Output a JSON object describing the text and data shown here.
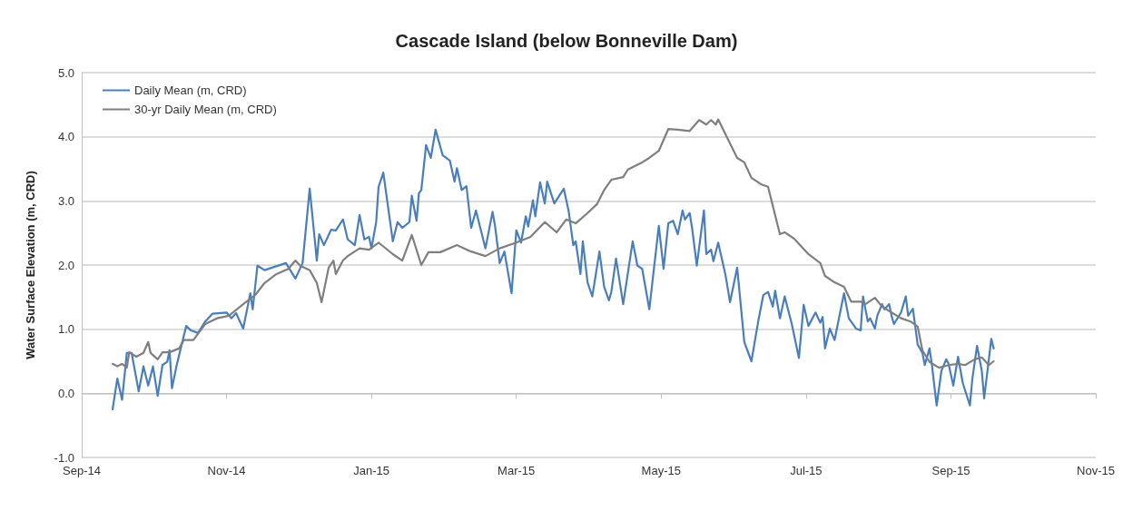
{
  "chart_data": {
    "type": "line",
    "title": "Cascade Island (below Bonneville Dam)",
    "ylabel": "Water Surface Elevation (m, CRD)",
    "xlim": [
      "2014-09-01",
      "2015-11-02"
    ],
    "xticks": [
      {
        "value": "2014-09-01",
        "label": "Sep-14"
      },
      {
        "value": "2014-11-01",
        "label": "Nov-14"
      },
      {
        "value": "2015-01-01",
        "label": "Jan-15"
      },
      {
        "value": "2015-03-03",
        "label": "Mar-15"
      },
      {
        "value": "2015-05-03",
        "label": "May-15"
      },
      {
        "value": "2015-07-03",
        "label": "Jul-15"
      },
      {
        "value": "2015-09-02",
        "label": "Sep-15"
      },
      {
        "value": "2015-11-02",
        "label": "Nov-15"
      }
    ],
    "ylim": [
      -1,
      5
    ],
    "yticks": [
      {
        "value": -1,
        "label": "-1.0"
      },
      {
        "value": 0,
        "label": "0.0"
      },
      {
        "value": 1,
        "label": "1.0"
      },
      {
        "value": 2,
        "label": "2.0"
      },
      {
        "value": 3,
        "label": "3.0"
      },
      {
        "value": 4,
        "label": "4.0"
      },
      {
        "value": 5,
        "label": "5.0"
      }
    ],
    "grid": "y",
    "legend": "top left",
    "marker": "none",
    "line_style": "solid",
    "series": [
      {
        "name": "Daily Mean (m, CRD)",
        "color": "#4a7ebb",
        "x": [
          "2014-09-14",
          "2014-09-16",
          "2014-09-18",
          "2014-09-20",
          "2014-09-22",
          "2014-09-25",
          "2014-09-27",
          "2014-09-29",
          "2014-10-01",
          "2014-10-03",
          "2014-10-05",
          "2014-10-07",
          "2014-10-08",
          "2014-10-09",
          "2014-10-11",
          "2014-10-15",
          "2014-10-17",
          "2014-10-20",
          "2014-10-23",
          "2014-10-26",
          "2014-11-01",
          "2014-11-03",
          "2014-11-05",
          "2014-11-08",
          "2014-11-11",
          "2014-11-12",
          "2014-11-14",
          "2014-11-17",
          "2014-11-21",
          "2014-11-26",
          "2014-11-30",
          "2014-12-03",
          "2014-12-06",
          "2014-12-09",
          "2014-12-10",
          "2014-12-12",
          "2014-12-15",
          "2014-12-17",
          "2014-12-20",
          "2014-12-22",
          "2014-12-25",
          "2014-12-27",
          "2014-12-29",
          "2014-12-31",
          "2015-01-01",
          "2015-01-03",
          "2015-01-04",
          "2015-01-06",
          "2015-01-10",
          "2015-01-12",
          "2015-01-14",
          "2015-01-17",
          "2015-01-18",
          "2015-01-20",
          "2015-01-21",
          "2015-01-22",
          "2015-01-24",
          "2015-01-26",
          "2015-01-28",
          "2015-01-31",
          "2015-02-03",
          "2015-02-05",
          "2015-02-06",
          "2015-02-08",
          "2015-02-10",
          "2015-02-12",
          "2015-02-14",
          "2015-02-18",
          "2015-02-21",
          "2015-02-22",
          "2015-02-24",
          "2015-02-26",
          "2015-03-01",
          "2015-03-03",
          "2015-03-05",
          "2015-03-07",
          "2015-03-08",
          "2015-03-10",
          "2015-03-11",
          "2015-03-13",
          "2015-03-15",
          "2015-03-16",
          "2015-03-19",
          "2015-03-23",
          "2015-03-25",
          "2015-03-27",
          "2015-03-28",
          "2015-03-30",
          "2015-03-31",
          "2015-04-02",
          "2015-04-04",
          "2015-04-07",
          "2015-04-09",
          "2015-04-11",
          "2015-04-12",
          "2015-04-14",
          "2015-04-17",
          "2015-04-21",
          "2015-04-23",
          "2015-04-25",
          "2015-04-28",
          "2015-05-02",
          "2015-05-04",
          "2015-05-06",
          "2015-05-08",
          "2015-05-10",
          "2015-05-12",
          "2015-05-13",
          "2015-05-15",
          "2015-05-16",
          "2015-05-18",
          "2015-05-21",
          "2015-05-22",
          "2015-05-24",
          "2015-05-25",
          "2015-05-27",
          "2015-05-30",
          "2015-06-01",
          "2015-06-04",
          "2015-06-07",
          "2015-06-10",
          "2015-06-13",
          "2015-06-15",
          "2015-06-17",
          "2015-06-19",
          "2015-06-20",
          "2015-06-22",
          "2015-06-24",
          "2015-06-27",
          "2015-06-30",
          "2015-07-02",
          "2015-07-04",
          "2015-07-07",
          "2015-07-09",
          "2015-07-10",
          "2015-07-11",
          "2015-07-13",
          "2015-07-15",
          "2015-07-19",
          "2015-07-21",
          "2015-07-24",
          "2015-07-26",
          "2015-07-27",
          "2015-07-29",
          "2015-07-30",
          "2015-08-01",
          "2015-08-02",
          "2015-08-04",
          "2015-08-05",
          "2015-08-07",
          "2015-08-08",
          "2015-08-09",
          "2015-08-12",
          "2015-08-14",
          "2015-08-15",
          "2015-08-17",
          "2015-08-19",
          "2015-08-21",
          "2015-08-22",
          "2015-08-24",
          "2015-08-25",
          "2015-08-27",
          "2015-08-29",
          "2015-08-31",
          "2015-09-01",
          "2015-09-03",
          "2015-09-05",
          "2015-09-07",
          "2015-09-10",
          "2015-09-11",
          "2015-09-13",
          "2015-09-15",
          "2015-09-16",
          "2015-09-19",
          "2015-09-20"
        ],
        "values": [
          -0.25,
          0.23,
          -0.1,
          0.63,
          0.63,
          0.03,
          0.42,
          0.12,
          0.42,
          -0.04,
          0.44,
          0.49,
          0.67,
          0.08,
          0.44,
          1.05,
          0.98,
          0.94,
          1.12,
          1.24,
          1.26,
          1.17,
          1.25,
          1.01,
          1.56,
          1.31,
          1.99,
          1.92,
          1.97,
          2.03,
          1.79,
          2.03,
          3.19,
          2.07,
          2.48,
          2.31,
          2.55,
          2.54,
          2.71,
          2.4,
          2.31,
          2.78,
          2.4,
          2.44,
          2.26,
          2.67,
          3.22,
          3.44,
          2.37,
          2.67,
          2.58,
          2.67,
          3.08,
          2.69,
          3.12,
          3.17,
          3.87,
          3.67,
          4.11,
          3.71,
          3.63,
          3.3,
          3.51,
          3.17,
          3.23,
          2.58,
          2.85,
          2.26,
          2.83,
          2.62,
          2.03,
          2.21,
          1.56,
          2.54,
          2.35,
          2.76,
          2.6,
          3.01,
          2.76,
          3.29,
          2.96,
          3.3,
          2.96,
          3.19,
          2.85,
          2.31,
          2.37,
          1.86,
          2.37,
          1.73,
          1.51,
          2.21,
          1.66,
          1.45,
          1.58,
          2.1,
          1.39,
          2.37,
          1.99,
          1.94,
          1.31,
          2.61,
          1.94,
          2.65,
          2.69,
          2.48,
          2.85,
          2.71,
          2.81,
          2.58,
          1.99,
          2.85,
          2.17,
          2.24,
          2.06,
          2.35,
          1.86,
          1.42,
          1.96,
          0.8,
          0.5,
          1.15,
          1.53,
          1.58,
          1.35,
          1.6,
          1.17,
          1.51,
          1.08,
          0.55,
          1.38,
          1.05,
          1.26,
          1.1,
          1.19,
          0.7,
          1.01,
          0.83,
          1.56,
          1.17,
          1.01,
          0.98,
          1.51,
          1.12,
          1.17,
          1.01,
          1.21,
          1.39,
          1.31,
          1.39,
          1.21,
          1.08,
          1.26,
          1.51,
          1.21,
          1.32,
          0.76,
          0.63,
          0.44,
          0.7,
          0.44,
          -0.19,
          0.35,
          0.53,
          0.46,
          0.12,
          0.57,
          0.16,
          -0.19,
          0.22,
          0.74,
          0.35,
          -0.08,
          0.85,
          0.7
        ]
      },
      {
        "name": "30-yr Daily Mean (m, CRD)",
        "color": "#7f7f7f",
        "x": [
          "2014-09-14",
          "2014-09-16",
          "2014-09-18",
          "2014-09-20",
          "2014-09-21",
          "2014-09-24",
          "2014-09-27",
          "2014-09-29",
          "2014-09-30",
          "2014-10-03",
          "2014-10-05",
          "2014-10-08",
          "2014-10-12",
          "2014-10-14",
          "2014-10-18",
          "2014-10-23",
          "2014-10-28",
          "2014-11-02",
          "2014-11-08",
          "2014-11-13",
          "2014-11-17",
          "2014-11-22",
          "2014-11-27",
          "2014-11-30",
          "2014-12-02",
          "2014-12-06",
          "2014-12-09",
          "2014-12-11",
          "2014-12-14",
          "2014-12-16",
          "2014-12-17",
          "2014-12-20",
          "2014-12-22",
          "2014-12-27",
          "2014-12-31",
          "2015-01-04",
          "2015-01-10",
          "2015-01-14",
          "2015-01-18",
          "2015-01-22",
          "2015-01-25",
          "2015-01-30",
          "2015-02-06",
          "2015-02-12",
          "2015-02-18",
          "2015-02-24",
          "2015-03-03",
          "2015-03-09",
          "2015-03-15",
          "2015-03-20",
          "2015-03-24",
          "2015-03-28",
          "2015-04-02",
          "2015-04-06",
          "2015-04-09",
          "2015-04-12",
          "2015-04-17",
          "2015-04-19",
          "2015-04-25",
          "2015-04-28",
          "2015-05-02",
          "2015-05-06",
          "2015-05-10",
          "2015-05-15",
          "2015-05-19",
          "2015-05-22",
          "2015-05-24",
          "2015-05-26",
          "2015-05-27",
          "2015-05-31",
          "2015-06-04",
          "2015-06-07",
          "2015-06-10",
          "2015-06-14",
          "2015-06-17",
          "2015-06-22",
          "2015-06-24",
          "2015-06-28",
          "2015-07-04",
          "2015-07-09",
          "2015-07-11",
          "2015-07-15",
          "2015-07-19",
          "2015-07-22",
          "2015-07-26",
          "2015-07-28",
          "2015-08-01",
          "2015-08-04",
          "2015-08-08",
          "2015-08-12",
          "2015-08-16",
          "2015-08-19",
          "2015-08-21",
          "2015-08-24",
          "2015-08-28",
          "2015-09-01",
          "2015-09-05",
          "2015-09-08",
          "2015-09-12",
          "2015-09-15",
          "2015-09-18",
          "2015-09-20"
        ],
        "values": [
          0.46,
          0.42,
          0.46,
          0.4,
          0.64,
          0.57,
          0.63,
          0.8,
          0.63,
          0.53,
          0.64,
          0.64,
          0.7,
          0.83,
          0.83,
          1.08,
          1.17,
          1.21,
          1.39,
          1.53,
          1.72,
          1.86,
          1.94,
          2.07,
          1.99,
          1.92,
          1.72,
          1.42,
          1.96,
          2.07,
          1.86,
          2.07,
          2.14,
          2.26,
          2.24,
          2.35,
          2.17,
          2.07,
          2.47,
          2.0,
          2.2,
          2.2,
          2.31,
          2.21,
          2.14,
          2.26,
          2.35,
          2.44,
          2.67,
          2.51,
          2.71,
          2.65,
          2.81,
          2.95,
          3.17,
          3.33,
          3.37,
          3.49,
          3.6,
          3.67,
          3.78,
          4.12,
          4.11,
          4.09,
          4.26,
          4.19,
          4.26,
          4.19,
          4.27,
          3.97,
          3.67,
          3.6,
          3.36,
          3.26,
          3.22,
          2.48,
          2.51,
          2.41,
          2.17,
          2.03,
          1.83,
          1.73,
          1.66,
          1.43,
          1.43,
          1.39,
          1.49,
          1.35,
          1.26,
          1.17,
          1.12,
          1.04,
          0.67,
          0.49,
          0.4,
          0.44,
          0.46,
          0.44,
          0.53,
          0.56,
          0.44,
          0.5
        ]
      }
    ]
  }
}
